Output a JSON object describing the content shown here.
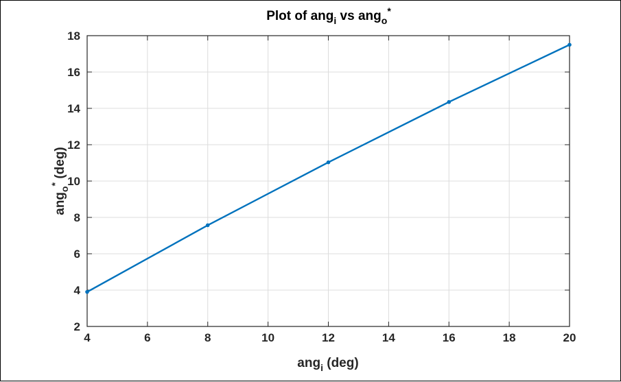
{
  "chart_data": {
    "type": "line",
    "title": {
      "base": "Plot of ang",
      "sub": "i",
      "mid": " vs ang",
      "sub2": "o",
      "sup": "*"
    },
    "xlabel": {
      "base": "ang",
      "sub": "i",
      "rest": " (deg)"
    },
    "ylabel": {
      "base": "ang",
      "sub": "o",
      "sup": "*",
      "rest": " (deg)"
    },
    "xlim": [
      4,
      20
    ],
    "ylim": [
      2,
      18
    ],
    "xticks": [
      4,
      6,
      8,
      10,
      12,
      14,
      16,
      18,
      20
    ],
    "yticks": [
      2,
      4,
      6,
      8,
      10,
      12,
      14,
      16,
      18
    ],
    "grid": true,
    "series": [
      {
        "x": [
          4,
          8,
          12,
          16,
          20
        ],
        "y": [
          3.9,
          7.57,
          11.03,
          14.35,
          17.5
        ],
        "color": "#0072BD",
        "marker": "point"
      }
    ]
  }
}
